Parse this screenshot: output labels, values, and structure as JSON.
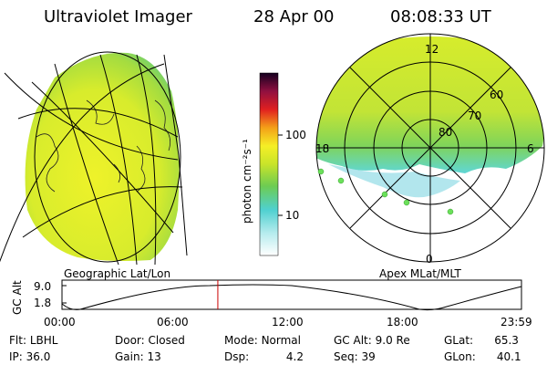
{
  "header": {
    "title": "Ultraviolet Imager",
    "date": "28 Apr 00",
    "time": "08:08:33 UT"
  },
  "colors": {
    "background": "#ffffff",
    "aurora_yellow": "#e6ee2a",
    "aurora_green": "#8fd34a",
    "aurora_cyan": "#5fd6d6",
    "grid": "#000000",
    "cursor_line": "#cc0000"
  },
  "colorbar": {
    "label": "photon cm⁻²s⁻¹",
    "ticks": [
      "100",
      "10"
    ],
    "scale": "log"
  },
  "left_panel": {
    "caption": "Geographic Lat/Lon"
  },
  "right_panel": {
    "caption": "Apex MLat/MLT",
    "mlt_labels": {
      "top": "12",
      "left": "18",
      "right": "6",
      "bottom": "0"
    },
    "mlat_labels": [
      "60",
      "70",
      "80"
    ]
  },
  "gc_alt_plot": {
    "ylabel": "GC Alt",
    "yticks": [
      "9.0",
      "1.8"
    ],
    "xticks": [
      "00:00",
      "06:00",
      "12:00",
      "18:00",
      "23:59"
    ],
    "current_time_hours": 8.14
  },
  "footer": {
    "row1": [
      {
        "label": "Flt:",
        "value": "LBHL"
      },
      {
        "label": "Door:",
        "value": "Closed"
      },
      {
        "label": "Mode:",
        "value": "Normal"
      },
      {
        "label": "GC Alt:",
        "value": "9.0 Re"
      },
      {
        "label": "GLat:",
        "value": "65.3"
      }
    ],
    "row2": [
      {
        "label": "IP:",
        "value": "36.0"
      },
      {
        "label": "Gain:",
        "value": "13"
      },
      {
        "label": "Dsp:",
        "value": "4.2"
      },
      {
        "label": "Seq:",
        "value": "39"
      },
      {
        "label": "GLon:",
        "value": "40.1"
      }
    ]
  }
}
